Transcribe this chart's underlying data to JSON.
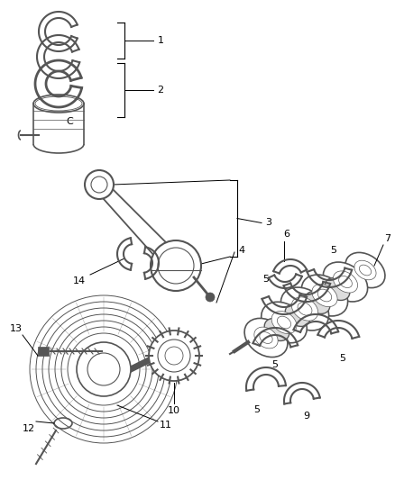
{
  "background_color": "#ffffff",
  "line_color": "#000000",
  "gray": "#555555",
  "light_gray": "#888888",
  "figsize": [
    4.38,
    5.33
  ],
  "dpi": 100
}
